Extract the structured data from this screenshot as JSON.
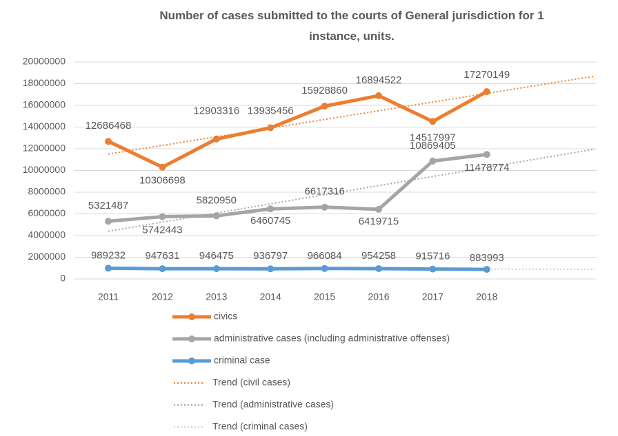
{
  "chart_data": {
    "type": "line",
    "title": "Number of cases submitted to the courts of General jurisdiction for 1 instance, units.",
    "categories": [
      "2011",
      "2012",
      "2013",
      "2014",
      "2015",
      "2016",
      "2017",
      "2018"
    ],
    "series": [
      {
        "name": "civics",
        "color": "#ed7d31",
        "values": [
          12686468,
          10306698,
          12903316,
          13935456,
          15928860,
          16894522,
          14517997,
          17270149
        ]
      },
      {
        "name": "administrative cases (including administrative offenses)",
        "color": "#a5a5a5",
        "values": [
          5321487,
          5742443,
          5820950,
          6460745,
          6617316,
          6419715,
          10869405,
          11478774
        ]
      },
      {
        "name": "criminal case",
        "color": "#5b9bd5",
        "values": [
          989232,
          947631,
          946475,
          936797,
          966084,
          954258,
          915716,
          883993
        ]
      }
    ],
    "trendlines": [
      {
        "name": "Trend (civil cases)",
        "color": "#ed7d31"
      },
      {
        "name": "Trend (administrative cases)",
        "color": "#a5a5a5"
      },
      {
        "name": "Trend (criminal cases)",
        "color": "#bdd7ee"
      }
    ],
    "ylim": [
      0,
      20000000
    ],
    "yticks": [
      0,
      2000000,
      4000000,
      6000000,
      8000000,
      10000000,
      12000000,
      14000000,
      16000000,
      18000000,
      20000000
    ],
    "grid": true
  }
}
